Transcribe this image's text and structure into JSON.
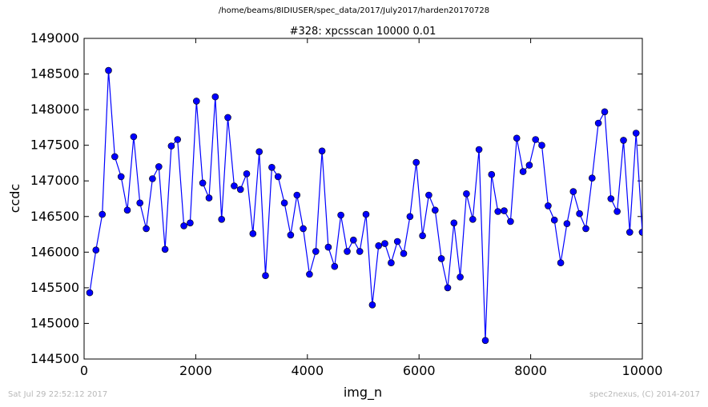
{
  "header": {
    "path": "/home/beams/8IDIUSER/spec_data/2017/July2017/harden20170728"
  },
  "footer": {
    "timestamp": "Sat Jul 29 22:52:12 2017",
    "credit": "spec2nexus, (C) 2014-2017"
  },
  "chart_data": {
    "type": "line",
    "title": "#328: xpcsscan 10000 0.01",
    "xlabel": "img_n",
    "ylabel": "ccdc",
    "xlim": [
      0,
      10000
    ],
    "ylim": [
      144500,
      149000
    ],
    "xticks": [
      0,
      2000,
      4000,
      6000,
      8000,
      10000
    ],
    "yticks": [
      144500,
      145000,
      145500,
      146000,
      146500,
      147000,
      147500,
      148000,
      148500,
      149000
    ],
    "line_color": "#0000ff",
    "marker_color": "#0000ff",
    "grid": false,
    "series": [
      {
        "x": [
          100,
          213,
          325,
          438,
          550,
          663,
          775,
          888,
          1000,
          1113,
          1225,
          1338,
          1450,
          1563,
          1675,
          1788,
          1900,
          2013,
          2125,
          2238,
          2350,
          2463,
          2575,
          2688,
          2800,
          2913,
          3025,
          3138,
          3250,
          3363,
          3475,
          3588,
          3700,
          3813,
          3925,
          4038,
          4150,
          4263,
          4375,
          4488,
          4600,
          4713,
          4825,
          4938,
          5050,
          5163,
          5275,
          5388,
          5500,
          5613,
          5725,
          5838,
          5950,
          6063,
          6175,
          6288,
          6400,
          6513,
          6625,
          6738,
          6850,
          6963,
          7075,
          7188,
          7300,
          7413,
          7525,
          7638,
          7750,
          7863,
          7975,
          8088,
          8200,
          8313,
          8425,
          8538,
          8650,
          8763,
          8875,
          8988,
          9100,
          9213,
          9325,
          9438,
          9550,
          9663,
          9775,
          9888,
          10000,
          10000
        ],
        "y": [
          145430,
          146030,
          146530,
          148550,
          147340,
          147060,
          146590,
          147620,
          146690,
          146330,
          147030,
          147200,
          146040,
          147490,
          147580,
          146370,
          146410,
          148120,
          146970,
          146760,
          148180,
          146460,
          147890,
          146930,
          146880,
          147100,
          146260,
          147410,
          145670,
          147190,
          147060,
          146690,
          146240,
          146800,
          146330,
          145690,
          146010,
          147420,
          146070,
          145800,
          146520,
          146010,
          146170,
          146010,
          146530,
          145260,
          146090,
          146120,
          145850,
          146150,
          145980,
          146500,
          147260,
          146230,
          146800,
          146590,
          145910,
          145500,
          146410,
          145650,
          146820,
          146460,
          147440,
          144760,
          147090,
          146570,
          146580,
          146430,
          147600,
          147130,
          147220,
          147580,
          147500,
          146650,
          146450,
          145850,
          146400,
          146850,
          146540,
          146330,
          147040,
          147810,
          147970,
          146750,
          146570,
          147570,
          146280,
          147670,
          146280,
          146280
        ]
      }
    ]
  }
}
